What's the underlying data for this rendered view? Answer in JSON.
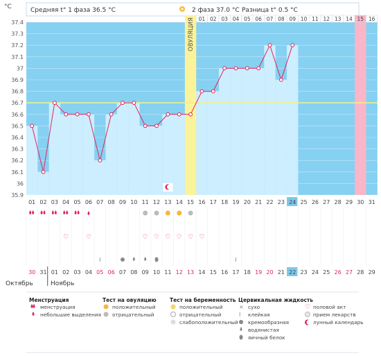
{
  "chart_data": {
    "type": "line",
    "y_unit": "°C",
    "ylim": [
      35.9,
      37.4
    ],
    "y_ticks": [
      "37.4",
      "37.3",
      "37.2",
      "37.1",
      "37",
      "36.9",
      "36.8",
      "36.7",
      "36.6",
      "36.5",
      "36.4",
      "36.3",
      "36.2",
      "36.1",
      "36",
      "35.9"
    ],
    "x_days": [
      "01",
      "02",
      "03",
      "04",
      "05",
      "06",
      "07",
      "08",
      "09",
      "10",
      "11",
      "12",
      "13",
      "14",
      "15",
      "16",
      "17",
      "18",
      "19",
      "20",
      "21",
      "22",
      "23",
      "24",
      "25",
      "26",
      "27",
      "28",
      "29",
      "30",
      "31"
    ],
    "highlight_day": "24",
    "series": [
      {
        "values": [
          36.5,
          36.1,
          36.7,
          36.6,
          36.6,
          36.6,
          36.2,
          36.6,
          36.7,
          36.7,
          36.5,
          36.5,
          36.6,
          36.6,
          36.6,
          36.8,
          36.8,
          37.0,
          37.0,
          37.0,
          37.0,
          37.2,
          36.9,
          37.2,
          null,
          null,
          null,
          null,
          null,
          null,
          null
        ]
      }
    ],
    "coverline": 36.7,
    "ovulation_day_index": 14,
    "ovulation_label": "ОВУЛЯЦИЯ",
    "phase1": {
      "label": "Средняя t° 1 фаза 36.5 °С"
    },
    "phase2": {
      "label": "2 фаза 37.0 °С",
      "diff": "Разница t° 0.5 °С",
      "days": [
        "01",
        "02",
        "03",
        "04",
        "05",
        "06",
        "07",
        "08",
        "09",
        "10",
        "11",
        "12",
        "13",
        "14",
        "15",
        "16"
      ]
    },
    "pink_day_index": 29,
    "calendar_days": [
      {
        "d": "30",
        "red": true
      },
      {
        "d": "31",
        "red": false
      },
      {
        "d": "01",
        "red": false
      },
      {
        "d": "02",
        "red": false
      },
      {
        "d": "03",
        "red": false
      },
      {
        "d": "04",
        "red": false
      },
      {
        "d": "05",
        "red": true
      },
      {
        "d": "06",
        "red": true
      },
      {
        "d": "07",
        "red": false
      },
      {
        "d": "08",
        "red": false
      },
      {
        "d": "09",
        "red": false
      },
      {
        "d": "10",
        "red": false
      },
      {
        "d": "11",
        "red": false
      },
      {
        "d": "12",
        "red": true
      },
      {
        "d": "13",
        "red": true
      },
      {
        "d": "14",
        "red": false
      },
      {
        "d": "15",
        "red": false
      },
      {
        "d": "16",
        "red": false
      },
      {
        "d": "17",
        "red": false
      },
      {
        "d": "18",
        "red": false
      },
      {
        "d": "19",
        "red": true
      },
      {
        "d": "20",
        "red": true
      },
      {
        "d": "21",
        "red": false
      },
      {
        "d": "22",
        "red": false
      },
      {
        "d": "23",
        "red": false
      },
      {
        "d": "24",
        "red": false
      },
      {
        "d": "25",
        "red": false
      },
      {
        "d": "26",
        "red": true
      },
      {
        "d": "27",
        "red": true
      },
      {
        "d": "28",
        "red": false
      },
      {
        "d": "29",
        "red": false
      }
    ],
    "month_prev": "Октябрь",
    "month_next": "Ноябрь",
    "icon_rows": {
      "menstruation": [
        "heavy",
        "heavy",
        "heavy",
        "heavy",
        "heavy",
        "light",
        null,
        null,
        null,
        null,
        null,
        null,
        null,
        null,
        null,
        null,
        null,
        null,
        null,
        null,
        null,
        null,
        null,
        null,
        null,
        null,
        null,
        null,
        null,
        null,
        null
      ],
      "ovulation_test": [
        null,
        null,
        null,
        null,
        null,
        null,
        null,
        null,
        null,
        null,
        "negative",
        "negative",
        "positive",
        "positive",
        "negative",
        null,
        null,
        null,
        null,
        null,
        null,
        null,
        null,
        null,
        null,
        null,
        null,
        null,
        null,
        null,
        null
      ],
      "sex": [
        null,
        null,
        null,
        "heart",
        null,
        "heart",
        null,
        null,
        null,
        null,
        "heart",
        "heart",
        "heart",
        "heart",
        "heart",
        "heart",
        null,
        null,
        null,
        null,
        null,
        null,
        null,
        null,
        null,
        null,
        null,
        null,
        null,
        null,
        null
      ],
      "cervical": [
        null,
        null,
        null,
        null,
        null,
        null,
        "sticky",
        null,
        "creamy",
        "watery",
        "watery",
        "eggwhite",
        null,
        null,
        null,
        null,
        null,
        null,
        "sticky",
        null,
        null,
        null,
        null,
        null,
        null,
        null,
        null,
        null,
        null,
        null,
        null
      ],
      "moon": [
        null,
        null,
        null,
        null,
        null,
        null,
        null,
        null,
        null,
        null,
        null,
        null,
        "moon",
        null,
        null,
        null,
        null,
        null,
        null,
        null,
        null,
        null,
        null,
        null,
        null,
        null,
        null,
        null,
        null,
        null,
        null
      ]
    }
  },
  "legend": {
    "menstruation": {
      "title": "Менструация",
      "items": [
        "менструация",
        "небольшие выделения"
      ]
    },
    "ovulation_test": {
      "title": "Тест на овуляцию",
      "items": [
        "положительный",
        "отрицательный"
      ]
    },
    "pregnancy_test": {
      "title": "Тест на беременность",
      "items": [
        "положительный",
        "отрицательный",
        "слабоположительный"
      ]
    },
    "cervical": {
      "title": "Цервикальная жидкость",
      "items": [
        "сухо",
        "клейкая",
        "кремообразная",
        "водянистая",
        "яичный белок"
      ]
    },
    "other": {
      "items": [
        "половой акт",
        "прием лекарств",
        "лунный календарь"
      ]
    }
  },
  "colors": {
    "phase_bg": "#86d0f2",
    "bar_fill": "#cdeefe",
    "ovulation": "#fbf39a",
    "pink": "#f9b6c8",
    "line": "#e0245e",
    "coverline": "#f0f08c",
    "highlight": "#7ec8ec"
  }
}
